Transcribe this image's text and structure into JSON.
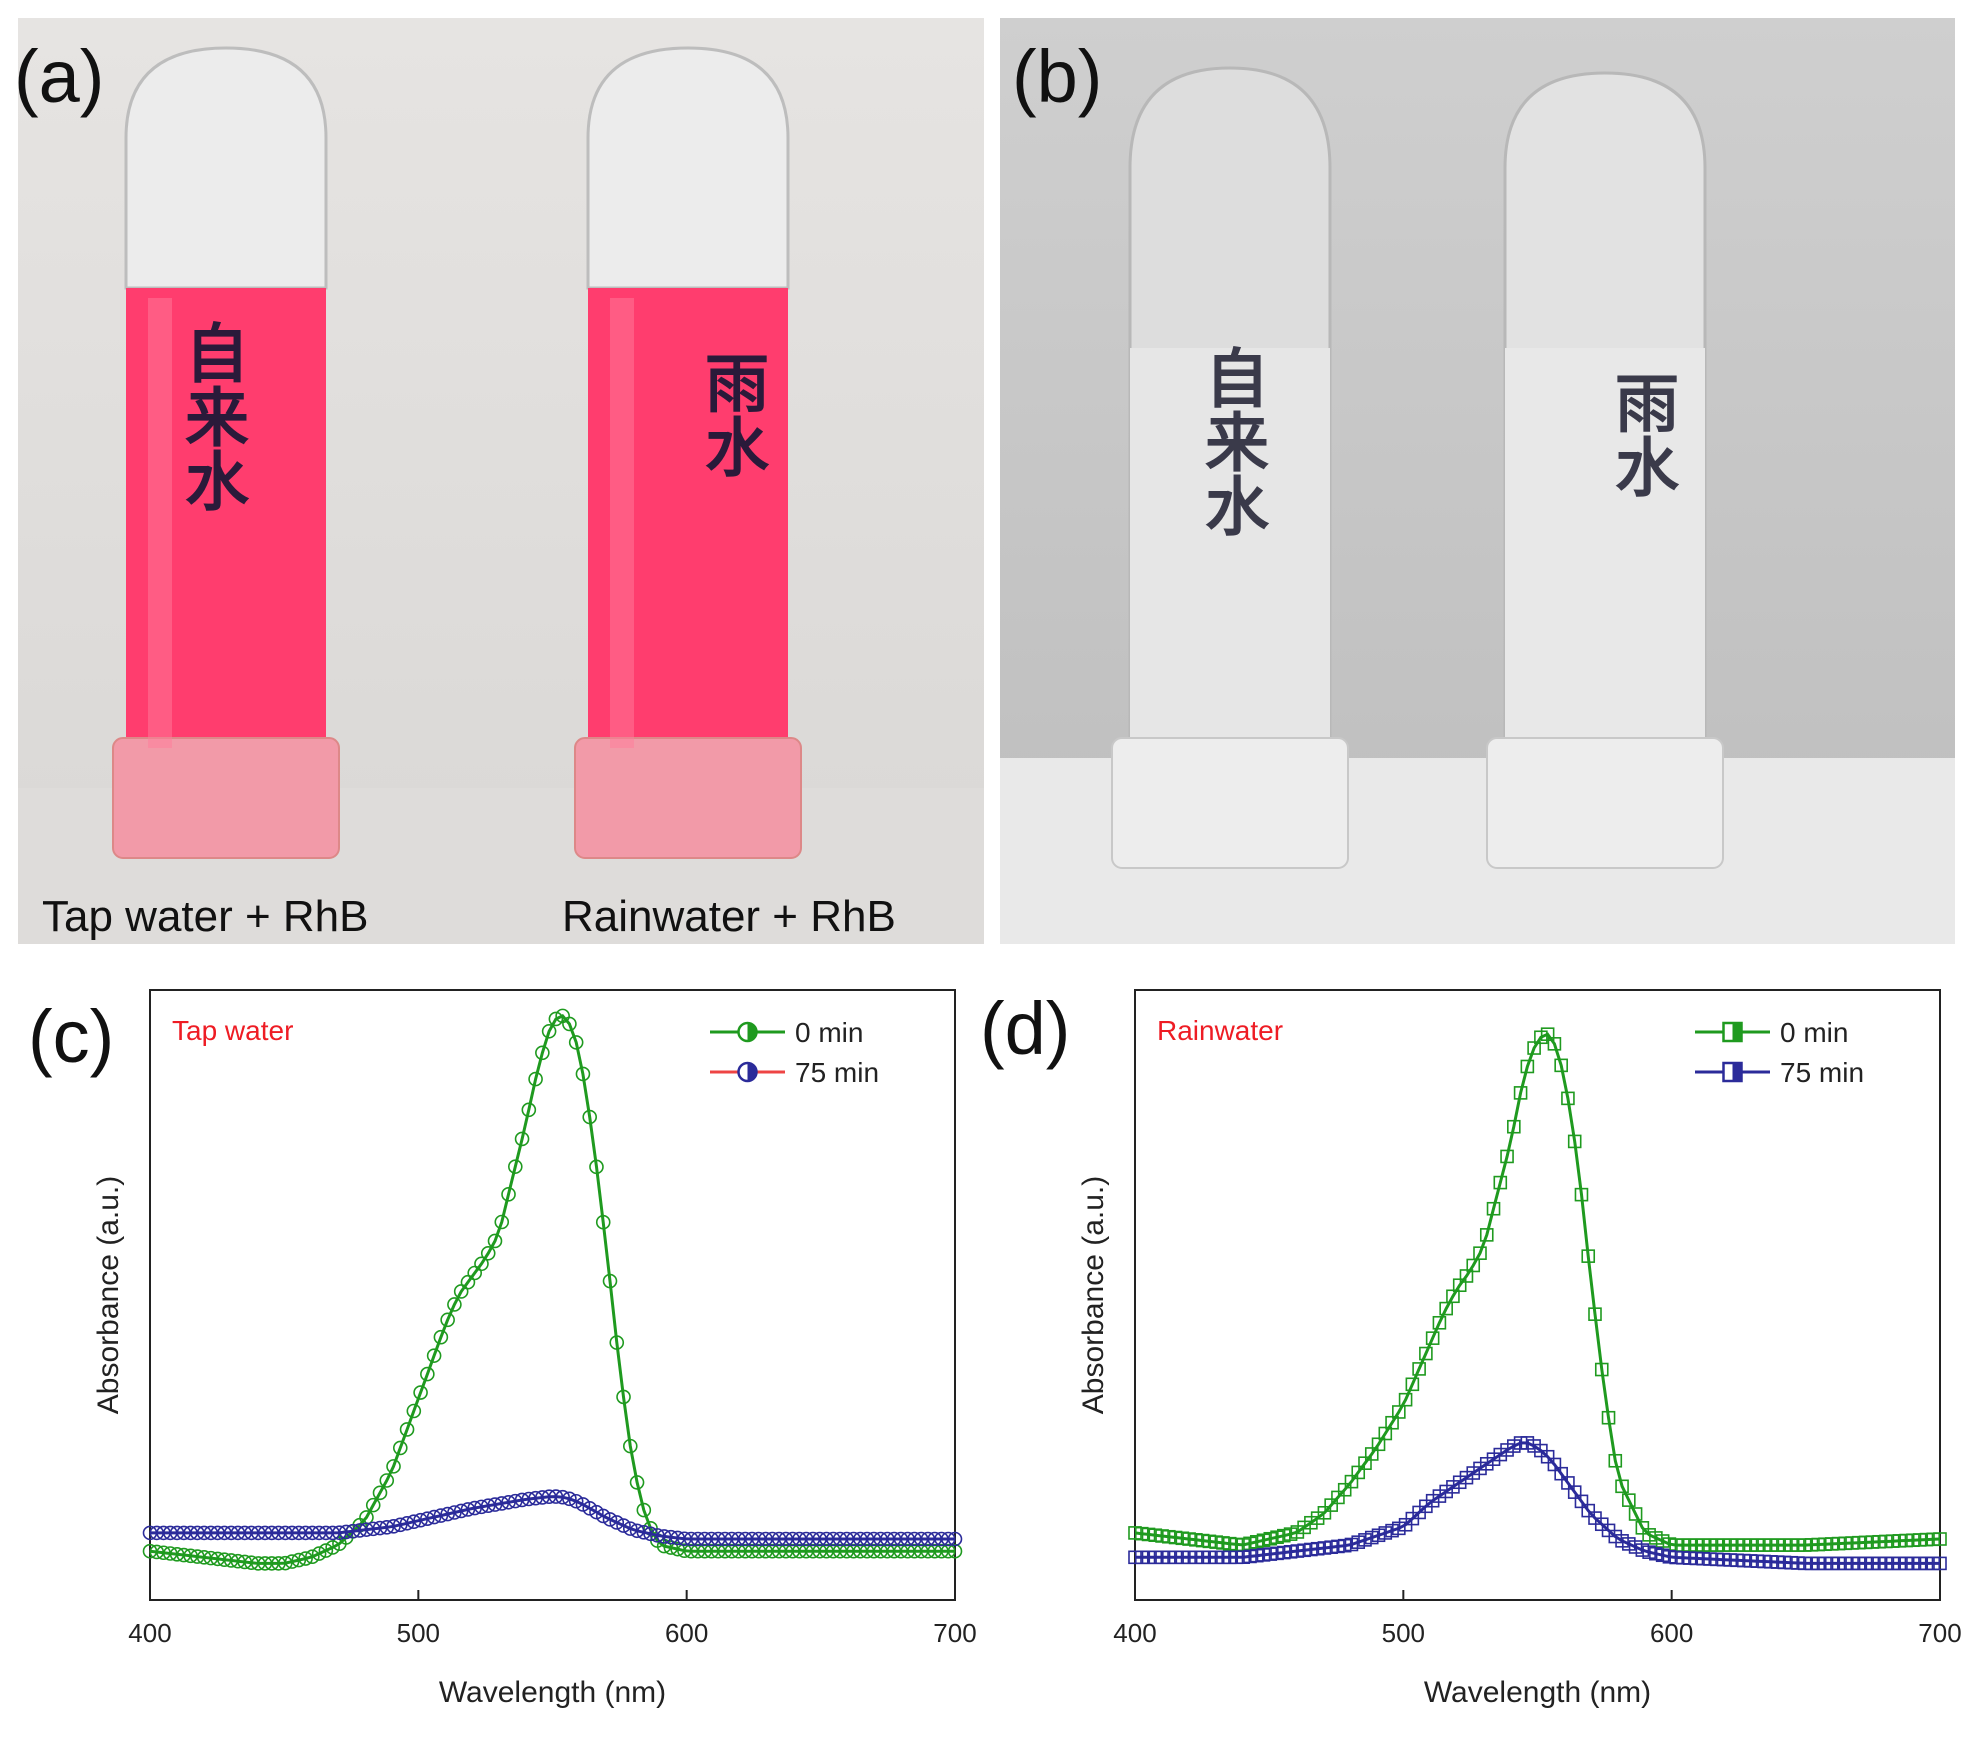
{
  "panels": {
    "a": {
      "letter": "(a)",
      "left_caption": "Tap water + RhB",
      "right_caption": "Rainwater + RhB",
      "left_vial_text": "自来水",
      "right_vial_text": "雨水",
      "solution_color": "#ff3d6e"
    },
    "b": {
      "letter": "(b)",
      "left_vial_text": "自来水",
      "right_vial_text": "雨水"
    },
    "c": {
      "letter": "(c)"
    },
    "d": {
      "letter": "(d)"
    }
  },
  "chart_data": [
    {
      "type": "line",
      "panel": "c",
      "annotation": "Tap water",
      "xlabel": "Wavelength (nm)",
      "ylabel": "Absorbance  (a.u.)",
      "xlim": [
        400,
        700
      ],
      "ylim": [
        0,
        1
      ],
      "xticks": [
        400,
        500,
        600,
        700
      ],
      "legend_position": "top-right",
      "series": [
        {
          "name": "0 min",
          "color": "#1f9a1f",
          "x": [
            400,
            420,
            440,
            450,
            460,
            470,
            480,
            490,
            500,
            510,
            515,
            520,
            525,
            530,
            540,
            545,
            550,
            555,
            560,
            565,
            570,
            575,
            580,
            585,
            590,
            600,
            650,
            700
          ],
          "y": [
            0.08,
            0.07,
            0.06,
            0.06,
            0.07,
            0.09,
            0.13,
            0.21,
            0.33,
            0.45,
            0.5,
            0.53,
            0.56,
            0.6,
            0.78,
            0.88,
            0.95,
            0.96,
            0.9,
            0.76,
            0.58,
            0.38,
            0.22,
            0.13,
            0.09,
            0.08,
            0.08,
            0.08
          ]
        },
        {
          "name": "75 min",
          "color": "#2b2b9a",
          "x": [
            400,
            440,
            470,
            490,
            500,
            520,
            540,
            550,
            555,
            560,
            570,
            580,
            590,
            600,
            650,
            700
          ],
          "y": [
            0.11,
            0.11,
            0.11,
            0.12,
            0.13,
            0.15,
            0.165,
            0.17,
            0.168,
            0.16,
            0.135,
            0.115,
            0.105,
            0.1,
            0.1,
            0.1
          ]
        }
      ]
    },
    {
      "type": "line",
      "panel": "d",
      "annotation": "Rainwater",
      "xlabel": "Wavelength (nm)",
      "ylabel": "Absorbance  (a.u.)",
      "xlim": [
        400,
        700
      ],
      "ylim": [
        0,
        1
      ],
      "xticks": [
        400,
        500,
        600,
        700
      ],
      "legend_position": "top-right",
      "series": [
        {
          "name": "0 min",
          "color": "#1f9a1f",
          "x": [
            400,
            420,
            440,
            460,
            470,
            480,
            490,
            500,
            510,
            515,
            520,
            525,
            530,
            540,
            545,
            550,
            555,
            560,
            565,
            570,
            575,
            580,
            590,
            600,
            620,
            650,
            700
          ],
          "y": [
            0.11,
            0.1,
            0.09,
            0.11,
            0.14,
            0.19,
            0.25,
            0.32,
            0.42,
            0.47,
            0.51,
            0.54,
            0.58,
            0.75,
            0.86,
            0.92,
            0.93,
            0.86,
            0.72,
            0.52,
            0.34,
            0.2,
            0.11,
            0.09,
            0.09,
            0.09,
            0.1
          ]
        },
        {
          "name": "75 min",
          "color": "#2b2b9a",
          "x": [
            400,
            440,
            460,
            480,
            500,
            510,
            520,
            530,
            540,
            545,
            550,
            555,
            560,
            570,
            580,
            590,
            600,
            650,
            700
          ],
          "y": [
            0.07,
            0.07,
            0.08,
            0.09,
            0.12,
            0.16,
            0.19,
            0.22,
            0.25,
            0.26,
            0.25,
            0.23,
            0.2,
            0.14,
            0.1,
            0.08,
            0.07,
            0.06,
            0.06
          ]
        }
      ]
    }
  ]
}
